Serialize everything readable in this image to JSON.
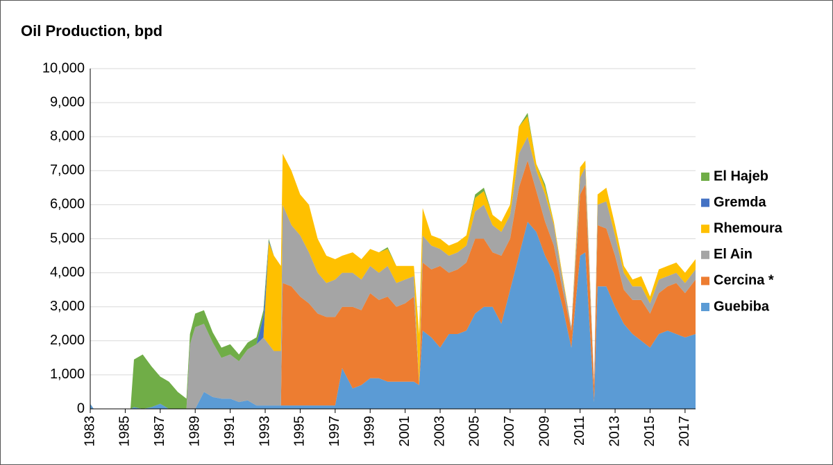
{
  "chart_data": {
    "type": "stacked_area",
    "title": "Oil Production, bpd",
    "x": [
      1983,
      1983.2,
      1985.3,
      1985.5,
      1986,
      1986.5,
      1987,
      1987.5,
      1988,
      1988.5,
      1988.7,
      1989,
      1989.5,
      1990,
      1990.5,
      1991,
      1991.5,
      1992,
      1992.5,
      1992.9,
      1993.2,
      1993.5,
      1993.9,
      1994,
      1994.5,
      1995,
      1995.5,
      1996,
      1996.5,
      1997,
      1997.4,
      1998,
      1998.5,
      1999,
      1999.5,
      2000,
      2000.5,
      2001,
      2001.5,
      2001.8,
      2002,
      2002.5,
      2003,
      2003.5,
      2004,
      2004.5,
      2005,
      2005.5,
      2006,
      2006.5,
      2007,
      2007.5,
      2008,
      2008.5,
      2009,
      2009.5,
      2010,
      2010.5,
      2011,
      2011.3,
      2011.8,
      2012,
      2012.5,
      2013,
      2013.5,
      2014,
      2014.5,
      2015,
      2015.5,
      2016,
      2016.5,
      2017,
      2017.6
    ],
    "series": [
      {
        "name": "Guebiba",
        "color": "#5b9bd5",
        "values": [
          150,
          0,
          0,
          50,
          0,
          50,
          150,
          0,
          0,
          0,
          0,
          0,
          500,
          350,
          300,
          300,
          200,
          250,
          100,
          100,
          100,
          100,
          100,
          100,
          100,
          100,
          100,
          100,
          100,
          100,
          1200,
          600,
          700,
          900,
          900,
          800,
          800,
          800,
          800,
          700,
          2300,
          2100,
          1800,
          2200,
          2200,
          2300,
          2800,
          3000,
          3000,
          2500,
          3500,
          4500,
          5500,
          5200,
          4500,
          4000,
          3000,
          1800,
          4500,
          4600,
          200,
          3600,
          3600,
          3000,
          2500,
          2200,
          2000,
          1800,
          2200,
          2300,
          2200,
          2100,
          2200
        ]
      },
      {
        "name": "Cercina *",
        "color": "#ed7d31",
        "values": [
          0,
          0,
          0,
          0,
          0,
          0,
          0,
          0,
          0,
          0,
          0,
          0,
          0,
          0,
          0,
          0,
          0,
          0,
          0,
          0,
          0,
          0,
          0,
          3600,
          3500,
          3200,
          3000,
          2700,
          2600,
          2600,
          1800,
          2400,
          2200,
          2500,
          2300,
          2500,
          2200,
          2300,
          2500,
          0,
          2000,
          2000,
          2400,
          1800,
          1900,
          2000,
          2200,
          2000,
          1600,
          2000,
          1500,
          2000,
          1800,
          1200,
          1000,
          800,
          500,
          500,
          1800,
          2000,
          500,
          1800,
          1700,
          1500,
          1000,
          1000,
          1200,
          1000,
          1200,
          1300,
          1500,
          1300,
          1600
        ]
      },
      {
        "name": "El Ain",
        "color": "#a5a5a5",
        "values": [
          0,
          0,
          0,
          0,
          0,
          0,
          0,
          0,
          0,
          0,
          1900,
          2400,
          2000,
          1600,
          1200,
          1300,
          1200,
          1500,
          1800,
          2000,
          1800,
          1600,
          1600,
          2300,
          1800,
          1800,
          1500,
          1200,
          1000,
          1100,
          1000,
          1000,
          900,
          800,
          800,
          900,
          700,
          700,
          600,
          0,
          800,
          700,
          500,
          500,
          500,
          500,
          800,
          1000,
          800,
          700,
          700,
          1000,
          700,
          600,
          800,
          600,
          300,
          100,
          500,
          500,
          100,
          600,
          800,
          600,
          500,
          400,
          400,
          300,
          400,
          300,
          300,
          300,
          300
        ]
      },
      {
        "name": "Rhemoura",
        "color": "#ffc000",
        "values": [
          0,
          0,
          0,
          0,
          0,
          0,
          0,
          0,
          0,
          0,
          0,
          0,
          0,
          0,
          0,
          0,
          0,
          0,
          0,
          0,
          3000,
          2800,
          2500,
          1500,
          1600,
          1200,
          1400,
          1000,
          800,
          600,
          500,
          600,
          600,
          500,
          600,
          500,
          500,
          400,
          300,
          1500,
          800,
          300,
          300,
          300,
          300,
          300,
          400,
          400,
          300,
          300,
          300,
          800,
          600,
          200,
          200,
          100,
          100,
          0,
          300,
          200,
          0,
          300,
          400,
          300,
          200,
          200,
          300,
          200,
          300,
          300,
          300,
          300,
          300
        ]
      },
      {
        "name": "Gremda",
        "color": "#4472c4",
        "values": [
          0,
          0,
          0,
          0,
          0,
          0,
          0,
          0,
          0,
          0,
          0,
          0,
          0,
          0,
          0,
          0,
          0,
          0,
          0,
          600,
          50,
          0,
          0,
          0,
          0,
          0,
          0,
          0,
          0,
          0,
          0,
          0,
          0,
          0,
          0,
          0,
          0,
          0,
          0,
          0,
          0,
          0,
          0,
          0,
          0,
          0,
          0,
          0,
          0,
          0,
          0,
          0,
          0,
          0,
          0,
          0,
          0,
          0,
          0,
          0,
          0,
          0,
          0,
          0,
          0,
          0,
          0,
          0,
          0,
          0,
          0,
          0,
          0
        ]
      },
      {
        "name": "El Hajeb",
        "color": "#70ad47",
        "values": [
          0,
          0,
          0,
          1400,
          1600,
          1200,
          800,
          800,
          500,
          300,
          300,
          400,
          400,
          300,
          300,
          300,
          200,
          200,
          200,
          200,
          50,
          0,
          0,
          0,
          0,
          0,
          0,
          0,
          0,
          0,
          0,
          0,
          0,
          0,
          0,
          50,
          0,
          0,
          0,
          0,
          0,
          0,
          0,
          0,
          0,
          0,
          100,
          100,
          0,
          0,
          0,
          0,
          100,
          0,
          100,
          0,
          0,
          0,
          0,
          0,
          0,
          0,
          0,
          0,
          0,
          0,
          0,
          0,
          0,
          0,
          0,
          0,
          0
        ]
      }
    ],
    "xlim": [
      1983,
      2017.6
    ],
    "xticks": [
      1983,
      1985,
      1987,
      1989,
      1991,
      1993,
      1995,
      1997,
      1999,
      2001,
      2003,
      2005,
      2007,
      2009,
      2011,
      2013,
      2015,
      2017
    ],
    "ylim": [
      0,
      10000
    ],
    "yticks": [
      0,
      {
        "value": 1000,
        "label": "1,000"
      },
      {
        "value": 2000,
        "label": "2,000"
      },
      {
        "value": 3000,
        "label": "3,000"
      },
      {
        "value": 4000,
        "label": "4,000"
      },
      {
        "value": 5000,
        "label": "5,000"
      },
      {
        "value": 6000,
        "label": "6,000"
      },
      {
        "value": 7000,
        "label": "7,000"
      },
      {
        "value": 8000,
        "label": "8,000"
      },
      {
        "value": 9000,
        "label": "9,000"
      },
      {
        "value": 10000,
        "label": "10,000"
      }
    ],
    "grid": true,
    "legend": "right"
  }
}
